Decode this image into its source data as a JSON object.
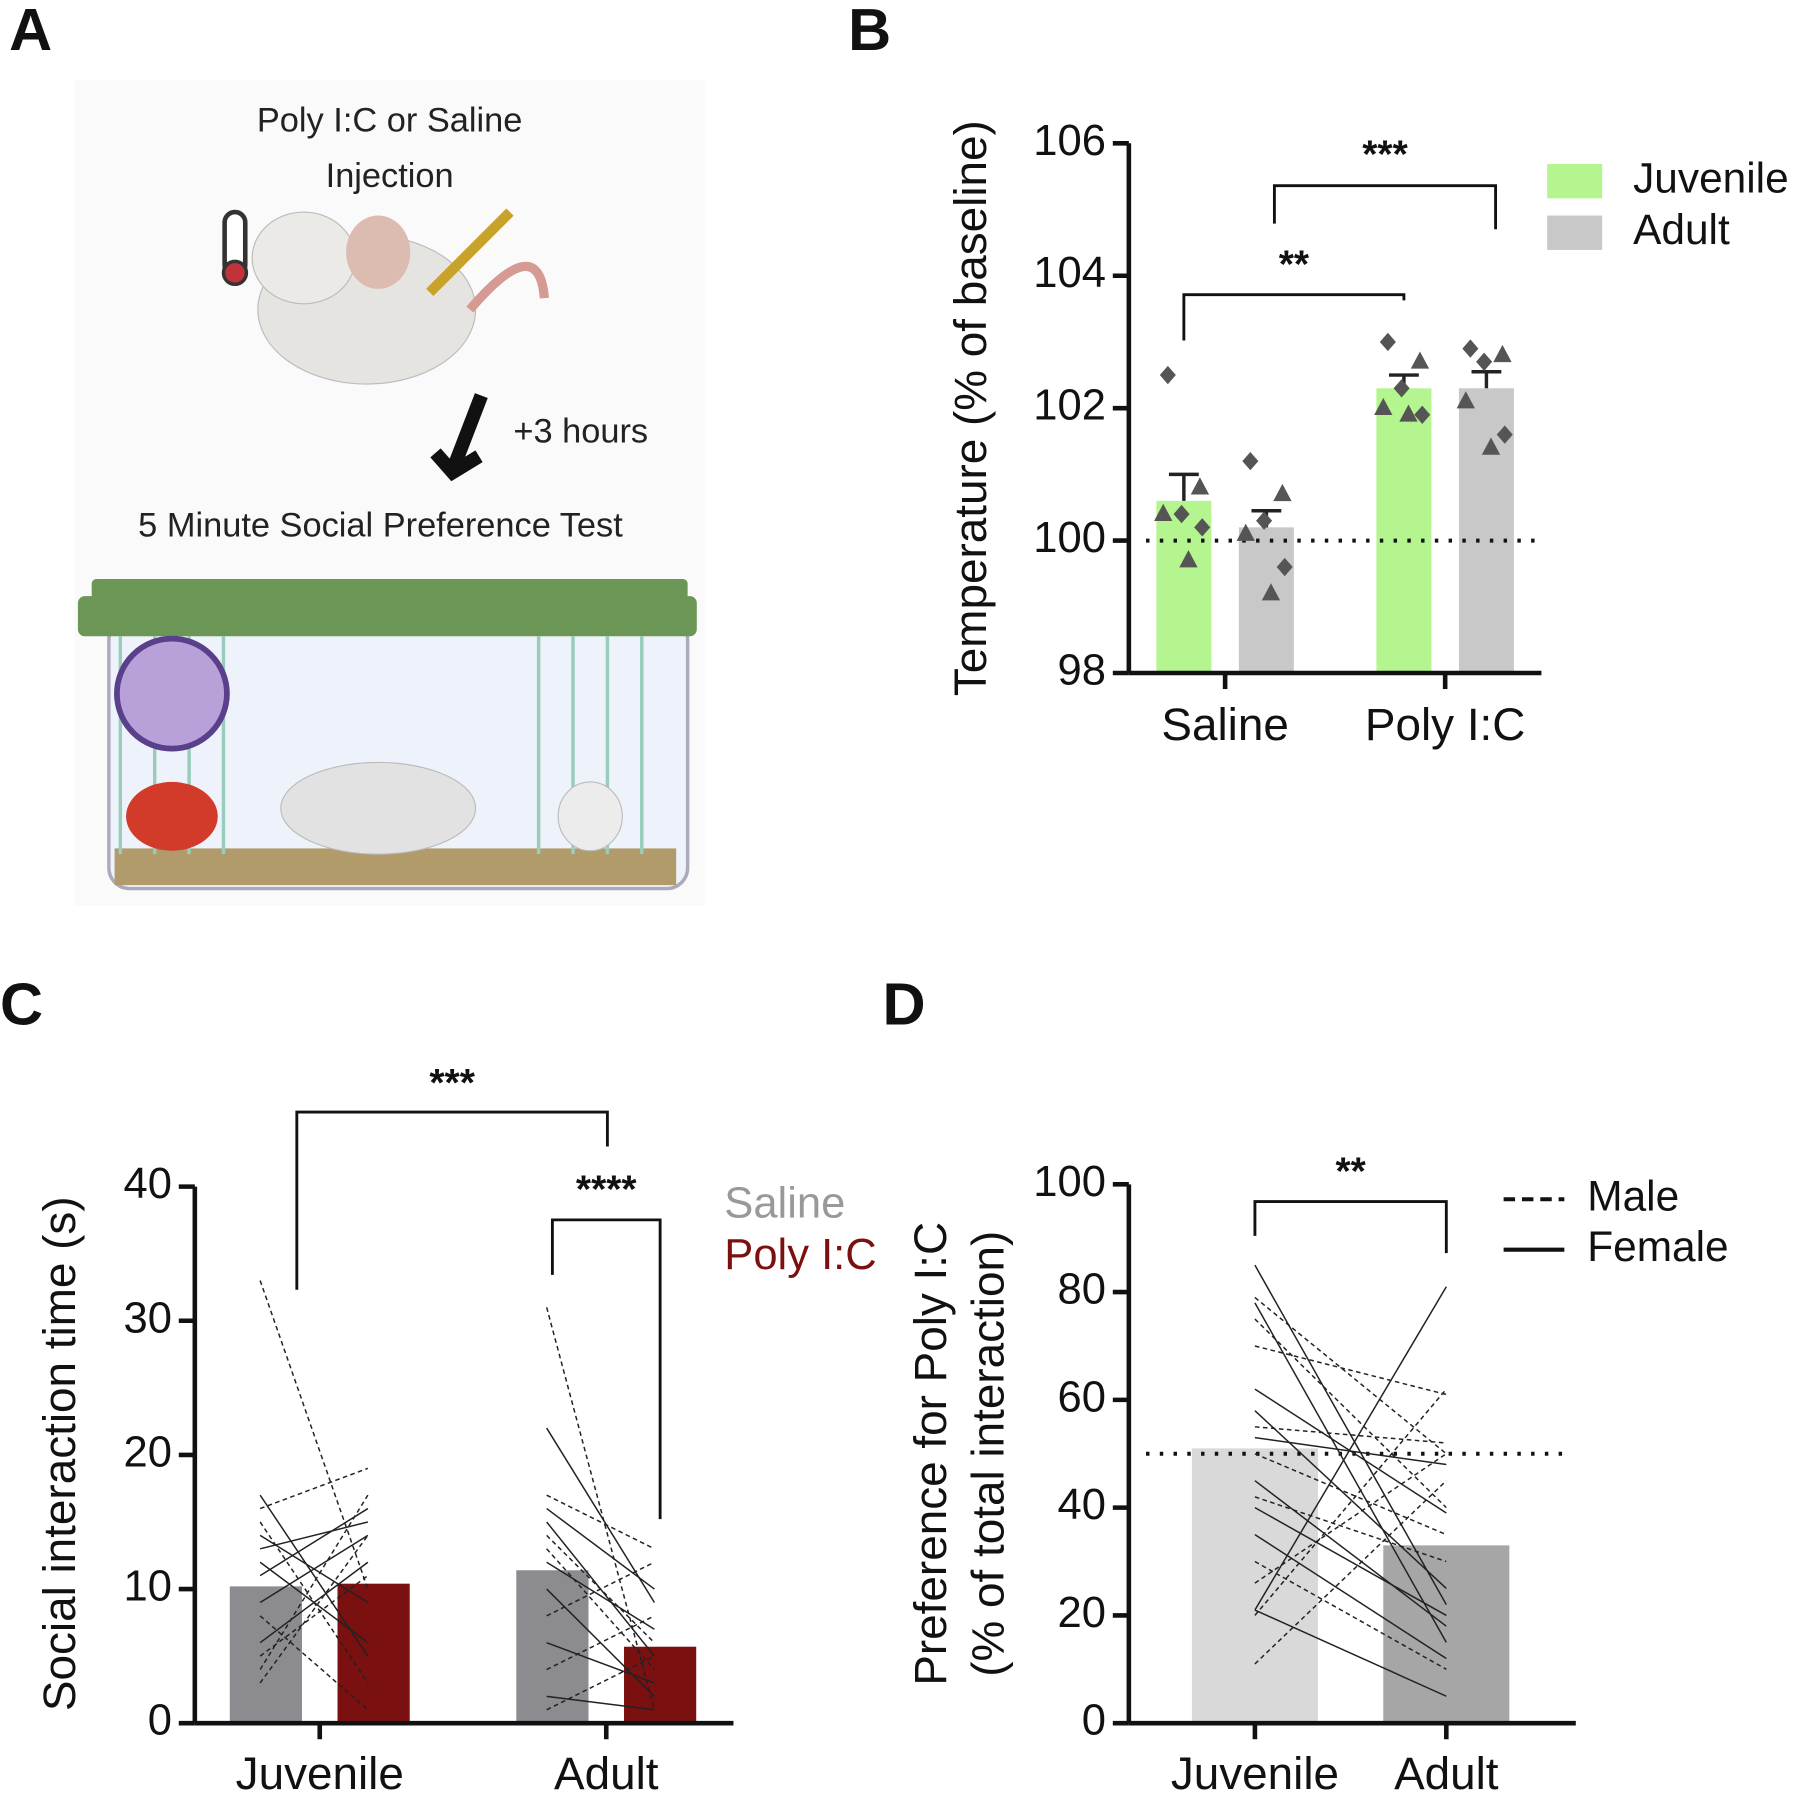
{
  "panel_a": {
    "label": "A",
    "injection_lines": [
      "Poly I:C or Saline",
      "Injection"
    ],
    "delay": "+3 hours",
    "test": "5 Minute Social Preference Test"
  },
  "chart_data": [
    {
      "type": "bar",
      "panel": "B",
      "ylabel": [
        "Temperature (% of baseline)"
      ],
      "categories": [
        "Saline",
        "Poly I:C"
      ],
      "series": [
        {
          "name": "Juvenile",
          "color": "#b5f58f",
          "values": [
            100.6,
            102.3
          ],
          "errors": [
            0.4,
            0.2
          ],
          "points": [
            [
              102.5,
              100.8,
              100.4,
              100.4,
              100.2,
              99.7
            ],
            [
              103.0,
              102.7,
              102.3,
              102.0,
              101.9,
              101.9
            ]
          ]
        },
        {
          "name": "Adult",
          "color": "#c8c8c8",
          "values": [
            100.2,
            102.3
          ],
          "errors": [
            0.25,
            0.25
          ],
          "points": [
            [
              101.2,
              100.7,
              100.3,
              100.1,
              99.6,
              99.2
            ],
            [
              102.9,
              102.8,
              102.7,
              102.1,
              101.6,
              101.4
            ]
          ]
        }
      ],
      "ylim": [
        98,
        106
      ],
      "yticks": [
        98,
        100,
        102,
        104,
        106
      ],
      "reference_line": 100,
      "annotations": [
        "**",
        "***"
      ]
    },
    {
      "type": "paired-bar",
      "panel": "C",
      "ylabel": [
        "Social interaction time (s)"
      ],
      "categories": [
        "Juvenile",
        "Adult"
      ],
      "series": [
        {
          "name": "Saline",
          "color": "#8c8c90",
          "values": [
            10.2,
            11.4
          ]
        },
        {
          "name": "Poly I:C",
          "color": "#7a1010",
          "values": [
            10.4,
            5.7
          ]
        }
      ],
      "pairs": [
        [
          {
            "values": [
              33,
              10
            ],
            "dashed": true
          },
          {
            "values": [
              16,
              19
            ],
            "dashed": true
          },
          {
            "values": [
              15,
              3
            ],
            "dashed": true
          },
          {
            "values": [
              17,
              5
            ],
            "dashed": false
          },
          {
            "values": [
              13,
              15
            ],
            "dashed": false
          },
          {
            "values": [
              9,
              14
            ],
            "dashed": false
          },
          {
            "values": [
              4,
              17
            ],
            "dashed": true
          },
          {
            "values": [
              6,
              12
            ],
            "dashed": false
          },
          {
            "values": [
              12,
              6
            ],
            "dashed": false
          },
          {
            "values": [
              3,
              14
            ],
            "dashed": true
          },
          {
            "values": [
              8,
              1
            ],
            "dashed": true
          },
          {
            "values": [
              11,
              16
            ],
            "dashed": false
          },
          {
            "values": [
              14,
              9
            ],
            "dashed": false
          },
          {
            "values": [
              5,
              11
            ],
            "dashed": true
          }
        ],
        [
          {
            "values": [
              31,
              1
            ],
            "dashed": true
          },
          {
            "values": [
              22,
              9
            ],
            "dashed": false
          },
          {
            "values": [
              17,
              13
            ],
            "dashed": true
          },
          {
            "values": [
              15,
              5
            ],
            "dashed": false
          },
          {
            "values": [
              13,
              4
            ],
            "dashed": true
          },
          {
            "values": [
              12,
              7
            ],
            "dashed": false
          },
          {
            "values": [
              10,
              2
            ],
            "dashed": false
          },
          {
            "values": [
              8,
              12
            ],
            "dashed": true
          },
          {
            "values": [
              6,
              3
            ],
            "dashed": false
          },
          {
            "values": [
              4,
              8
            ],
            "dashed": true
          },
          {
            "values": [
              2,
              1
            ],
            "dashed": false
          },
          {
            "values": [
              14,
              6
            ],
            "dashed": true
          },
          {
            "values": [
              16,
              10
            ],
            "dashed": false
          },
          {
            "values": [
              1,
              5
            ],
            "dashed": true
          }
        ]
      ],
      "ylim": [
        0,
        40
      ],
      "yticks": [
        0,
        10,
        20,
        30,
        40
      ],
      "annotations": [
        "***",
        "****"
      ]
    },
    {
      "type": "line-bar",
      "panel": "D",
      "ylabel": [
        "Preference for Poly I:C",
        "(% of total interaction)"
      ],
      "categories": [
        "Juvenile",
        "Adult"
      ],
      "values": [
        51,
        33
      ],
      "colors": [
        "#d9d9d9",
        "#a6a6a6"
      ],
      "legend": [
        {
          "name": "Male",
          "dashed": true
        },
        {
          "name": "Female",
          "dashed": false
        }
      ],
      "lines": [
        {
          "values": [
            85,
            22
          ],
          "dashed": false
        },
        {
          "values": [
            79,
            50
          ],
          "dashed": true
        },
        {
          "values": [
            78,
            15
          ],
          "dashed": false
        },
        {
          "values": [
            75,
            40
          ],
          "dashed": true
        },
        {
          "values": [
            70,
            61
          ],
          "dashed": true
        },
        {
          "values": [
            62,
            39
          ],
          "dashed": false
        },
        {
          "values": [
            58,
            25
          ],
          "dashed": false
        },
        {
          "values": [
            55,
            52
          ],
          "dashed": true
        },
        {
          "values": [
            53,
            48
          ],
          "dashed": false
        },
        {
          "values": [
            50,
            35
          ],
          "dashed": true
        },
        {
          "values": [
            45,
            18
          ],
          "dashed": false
        },
        {
          "values": [
            42,
            30
          ],
          "dashed": true
        },
        {
          "values": [
            40,
            20
          ],
          "dashed": false
        },
        {
          "values": [
            35,
            12
          ],
          "dashed": false
        },
        {
          "values": [
            30,
            10
          ],
          "dashed": true
        },
        {
          "values": [
            21,
            81
          ],
          "dashed": false
        },
        {
          "values": [
            20,
            62
          ],
          "dashed": true
        },
        {
          "values": [
            11,
            45
          ],
          "dashed": true
        },
        {
          "values": [
            21,
            5
          ],
          "dashed": false
        },
        {
          "values": [
            26,
            50
          ],
          "dashed": true
        }
      ],
      "ylim": [
        0,
        100
      ],
      "yticks": [
        0,
        20,
        40,
        60,
        80,
        100
      ],
      "reference_line": 50,
      "annotations": [
        "**"
      ]
    }
  ]
}
